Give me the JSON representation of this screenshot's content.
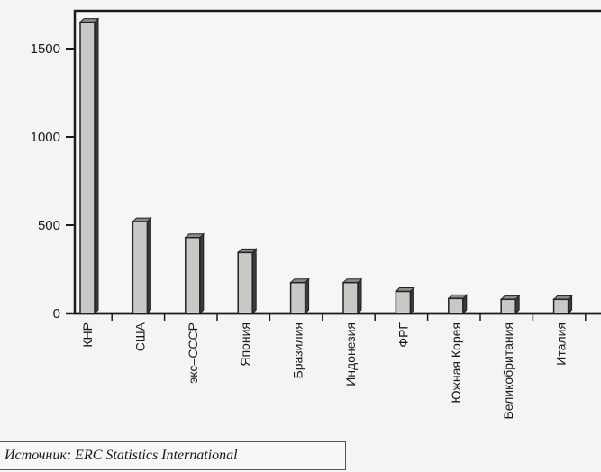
{
  "chart_data": {
    "type": "bar",
    "categories": [
      "КНР",
      "США",
      "экс–СССР",
      "Япония",
      "Бразилия",
      "Индонезия",
      "ФРГ",
      "Южная Корея",
      "Великобритания",
      "Италия"
    ],
    "values": [
      1650,
      520,
      430,
      345,
      175,
      175,
      125,
      85,
      80,
      80
    ],
    "title": "",
    "xlabel": "",
    "ylabel": "",
    "ylim": [
      0,
      1700
    ],
    "yticks": [
      0,
      500,
      1000,
      1500
    ],
    "yticklabels": [
      "0",
      "500",
      "1000",
      "1500"
    ],
    "grid": "horizontal dashed",
    "bar_color": "#c8c8c4",
    "bar_edge_color": "#222222"
  },
  "source": "Источник: ERC Statistics International"
}
